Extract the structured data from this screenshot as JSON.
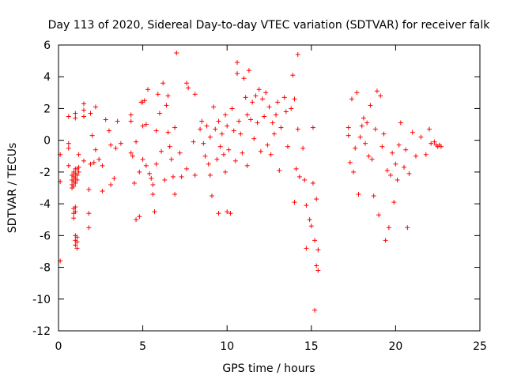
{
  "chart_data": {
    "type": "scatter",
    "title": "Day 113 of 2020, Sidereal Day-to-day VTEC variation (SDTVAR) for receiver falk",
    "xlabel": "GPS time / hours",
    "ylabel": "SDTVAR / TECUs",
    "xlim": [
      0,
      25
    ],
    "ylim": [
      -12,
      6
    ],
    "xticks": [
      0,
      5,
      10,
      15,
      20,
      25
    ],
    "yticks": [
      -12,
      -10,
      -8,
      -6,
      -4,
      -2,
      0,
      2,
      4,
      6
    ],
    "xtick_labels": [
      "0",
      "5",
      "10",
      "15",
      "20",
      "25"
    ],
    "ytick_labels": [
      "-12",
      "-10",
      "-8",
      "-6",
      "-4",
      "-2",
      "0",
      "2",
      "4",
      "6"
    ],
    "marker": "+",
    "grid": false,
    "series": [
      {
        "name": "SDTVAR",
        "color": "#ff0000",
        "points": [
          [
            0.1,
            -0.9
          ],
          [
            0.1,
            -2.6
          ],
          [
            0.1,
            -7.6
          ],
          [
            0.6,
            1.5
          ],
          [
            0.6,
            -0.2
          ],
          [
            0.6,
            -1.6
          ],
          [
            0.6,
            -0.5
          ],
          [
            0.8,
            -2.2
          ],
          [
            0.8,
            -2.5
          ],
          [
            0.8,
            -2.8
          ],
          [
            0.8,
            -3.0
          ],
          [
            0.9,
            -4.9
          ],
          [
            0.9,
            -4.6
          ],
          [
            0.9,
            -4.3
          ],
          [
            0.9,
            -2.0
          ],
          [
            0.9,
            -2.3
          ],
          [
            0.9,
            -2.6
          ],
          [
            0.9,
            -2.9
          ],
          [
            1.0,
            1.4
          ],
          [
            1.0,
            1.7
          ],
          [
            1.0,
            -1.8
          ],
          [
            1.0,
            -2.1
          ],
          [
            1.0,
            -2.4
          ],
          [
            1.0,
            -2.7
          ],
          [
            1.0,
            -4.2
          ],
          [
            1.0,
            -4.5
          ],
          [
            1.0,
            -6.0
          ],
          [
            1.0,
            -6.3
          ],
          [
            1.0,
            -6.6
          ],
          [
            1.1,
            -1.8
          ],
          [
            1.1,
            -2.2
          ],
          [
            1.1,
            -2.5
          ],
          [
            1.1,
            -6.1
          ],
          [
            1.1,
            -6.4
          ],
          [
            1.1,
            -6.8
          ],
          [
            1.2,
            -2.0
          ],
          [
            1.2,
            -1.7
          ],
          [
            1.2,
            -0.9
          ],
          [
            1.5,
            2.3
          ],
          [
            1.5,
            1.9
          ],
          [
            1.5,
            1.5
          ],
          [
            1.5,
            -1.3
          ],
          [
            1.8,
            -3.1
          ],
          [
            1.8,
            -4.6
          ],
          [
            1.8,
            -5.5
          ],
          [
            1.9,
            1.7
          ],
          [
            1.9,
            -1.5
          ],
          [
            2.0,
            0.3
          ],
          [
            2.1,
            -1.4
          ],
          [
            2.2,
            2.1
          ],
          [
            2.2,
            -0.6
          ],
          [
            2.4,
            -1.2
          ],
          [
            2.6,
            -3.2
          ],
          [
            2.6,
            -1.6
          ],
          [
            2.8,
            1.3
          ],
          [
            3.0,
            0.6
          ],
          [
            3.1,
            -0.3
          ],
          [
            3.1,
            -2.8
          ],
          [
            3.3,
            -2.4
          ],
          [
            3.4,
            -0.5
          ],
          [
            3.5,
            1.2
          ],
          [
            3.7,
            -0.2
          ],
          [
            4.3,
            1.6
          ],
          [
            4.3,
            1.2
          ],
          [
            4.3,
            -0.8
          ],
          [
            4.4,
            -1.0
          ],
          [
            4.5,
            -2.7
          ],
          [
            4.6,
            -0.1
          ],
          [
            4.6,
            -5.0
          ],
          [
            4.8,
            -4.8
          ],
          [
            4.8,
            -2.0
          ],
          [
            4.9,
            2.4
          ],
          [
            5.0,
            2.4
          ],
          [
            5.0,
            0.9
          ],
          [
            5.0,
            -1.2
          ],
          [
            5.1,
            2.5
          ],
          [
            5.2,
            1.0
          ],
          [
            5.2,
            -1.6
          ],
          [
            5.3,
            3.2
          ],
          [
            5.4,
            -2.1
          ],
          [
            5.5,
            -2.4
          ],
          [
            5.6,
            -2.8
          ],
          [
            5.6,
            -3.4
          ],
          [
            5.7,
            -4.5
          ],
          [
            5.8,
            0.6
          ],
          [
            5.8,
            -1.5
          ],
          [
            5.9,
            2.9
          ],
          [
            6.0,
            1.7
          ],
          [
            6.1,
            -0.7
          ],
          [
            6.2,
            3.6
          ],
          [
            6.3,
            -2.5
          ],
          [
            6.4,
            2.2
          ],
          [
            6.5,
            2.8
          ],
          [
            6.5,
            0.5
          ],
          [
            6.6,
            -0.4
          ],
          [
            6.7,
            -1.2
          ],
          [
            6.8,
            -2.3
          ],
          [
            6.9,
            0.8
          ],
          [
            6.9,
            -3.4
          ],
          [
            7.0,
            5.5
          ],
          [
            7.2,
            -0.8
          ],
          [
            7.3,
            -2.3
          ],
          [
            7.6,
            -1.8
          ],
          [
            7.6,
            3.6
          ],
          [
            7.7,
            3.3
          ],
          [
            8.0,
            -0.1
          ],
          [
            8.1,
            2.9
          ],
          [
            8.1,
            -2.2
          ],
          [
            8.4,
            0.7
          ],
          [
            8.5,
            1.2
          ],
          [
            8.6,
            -0.2
          ],
          [
            8.7,
            -1.0
          ],
          [
            8.8,
            0.9
          ],
          [
            8.9,
            -1.5
          ],
          [
            9.0,
            0.2
          ],
          [
            9.0,
            -2.2
          ],
          [
            9.1,
            -3.5
          ],
          [
            9.2,
            2.1
          ],
          [
            9.3,
            0.7
          ],
          [
            9.4,
            -1.2
          ],
          [
            9.5,
            -4.6
          ],
          [
            9.5,
            1.2
          ],
          [
            9.6,
            -0.4
          ],
          [
            9.7,
            0.4
          ],
          [
            9.8,
            -0.9
          ],
          [
            9.9,
            1.6
          ],
          [
            9.9,
            -2.0
          ],
          [
            10.0,
            -4.5
          ],
          [
            10.0,
            0.9
          ],
          [
            10.1,
            -0.6
          ],
          [
            10.2,
            -4.6
          ],
          [
            10.3,
            2.0
          ],
          [
            10.4,
            0.6
          ],
          [
            10.5,
            -1.3
          ],
          [
            10.6,
            4.9
          ],
          [
            10.6,
            4.2
          ],
          [
            10.7,
            1.2
          ],
          [
            10.8,
            0.4
          ],
          [
            10.9,
            -0.8
          ],
          [
            11.0,
            3.9
          ],
          [
            11.1,
            2.7
          ],
          [
            11.2,
            -1.6
          ],
          [
            11.2,
            1.6
          ],
          [
            11.3,
            4.4
          ],
          [
            11.4,
            1.3
          ],
          [
            11.5,
            2.4
          ],
          [
            11.6,
            0.1
          ],
          [
            11.7,
            2.8
          ],
          [
            11.8,
            1.1
          ],
          [
            11.9,
            3.2
          ],
          [
            12.0,
            -0.7
          ],
          [
            12.1,
            2.6
          ],
          [
            12.2,
            1.5
          ],
          [
            12.3,
            3.0
          ],
          [
            12.4,
            -0.3
          ],
          [
            12.5,
            2.1
          ],
          [
            12.6,
            -0.9
          ],
          [
            12.7,
            1.1
          ],
          [
            12.8,
            0.4
          ],
          [
            12.9,
            1.6
          ],
          [
            13.0,
            2.4
          ],
          [
            13.1,
            -1.9
          ],
          [
            13.2,
            0.8
          ],
          [
            13.4,
            2.7
          ],
          [
            13.5,
            1.8
          ],
          [
            13.6,
            -0.4
          ],
          [
            13.8,
            2.0
          ],
          [
            13.9,
            4.1
          ],
          [
            14.0,
            2.6
          ],
          [
            14.0,
            -3.9
          ],
          [
            14.1,
            -1.8
          ],
          [
            14.2,
            5.4
          ],
          [
            14.2,
            0.7
          ],
          [
            14.3,
            -2.3
          ],
          [
            14.5,
            -0.5
          ],
          [
            14.6,
            -2.5
          ],
          [
            14.7,
            -4.1
          ],
          [
            14.7,
            -6.8
          ],
          [
            14.9,
            -5.0
          ],
          [
            15.0,
            -5.4
          ],
          [
            15.1,
            -2.7
          ],
          [
            15.1,
            0.8
          ],
          [
            15.2,
            -6.3
          ],
          [
            15.2,
            -10.7
          ],
          [
            15.3,
            -7.9
          ],
          [
            15.3,
            -3.7
          ],
          [
            15.4,
            -8.2
          ],
          [
            15.4,
            -6.9
          ],
          [
            17.2,
            0.8
          ],
          [
            17.2,
            0.3
          ],
          [
            17.3,
            -1.4
          ],
          [
            17.4,
            2.6
          ],
          [
            17.5,
            -2.0
          ],
          [
            17.6,
            -0.5
          ],
          [
            17.7,
            3.0
          ],
          [
            17.8,
            -3.4
          ],
          [
            17.9,
            0.2
          ],
          [
            18.0,
            0.9
          ],
          [
            18.1,
            1.4
          ],
          [
            18.2,
            -0.2
          ],
          [
            18.3,
            1.1
          ],
          [
            18.4,
            -1.0
          ],
          [
            18.5,
            2.2
          ],
          [
            18.6,
            -1.2
          ],
          [
            18.7,
            -3.5
          ],
          [
            18.8,
            0.7
          ],
          [
            18.9,
            3.1
          ],
          [
            19.0,
            -4.7
          ],
          [
            19.1,
            2.8
          ],
          [
            19.2,
            -0.4
          ],
          [
            19.3,
            0.4
          ],
          [
            19.4,
            -6.3
          ],
          [
            19.5,
            -1.9
          ],
          [
            19.6,
            -5.5
          ],
          [
            19.7,
            -2.2
          ],
          [
            19.8,
            -0.8
          ],
          [
            19.9,
            -3.9
          ],
          [
            20.0,
            -1.5
          ],
          [
            20.1,
            -2.5
          ],
          [
            20.2,
            -0.3
          ],
          [
            20.3,
            1.1
          ],
          [
            20.5,
            -1.7
          ],
          [
            20.6,
            -0.6
          ],
          [
            20.7,
            -5.5
          ],
          [
            20.8,
            -2.1
          ],
          [
            21.0,
            0.5
          ],
          [
            21.2,
            -1.0
          ],
          [
            21.5,
            0.2
          ],
          [
            21.8,
            -0.9
          ],
          [
            22.0,
            0.7
          ],
          [
            22.1,
            -0.2
          ],
          [
            22.3,
            -0.1
          ],
          [
            22.4,
            -0.3
          ],
          [
            22.5,
            -0.4
          ],
          [
            22.6,
            -0.3
          ],
          [
            22.7,
            -0.4
          ]
        ]
      }
    ]
  }
}
